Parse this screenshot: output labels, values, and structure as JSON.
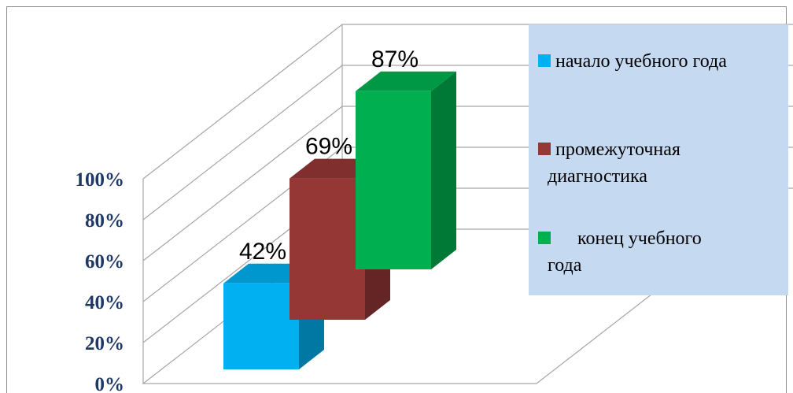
{
  "chart_data": {
    "type": "bar",
    "title": "",
    "xlabel": "",
    "ylabel": "",
    "ylim": [
      0,
      100
    ],
    "y_ticks": [
      "0%",
      "20%",
      "40%",
      "60%",
      "80%",
      "100%"
    ],
    "grid": true,
    "legend_position": "right",
    "series": [
      {
        "name": "начало учебного года",
        "value": 42,
        "label": "42%",
        "color": "#00b0f0"
      },
      {
        "name": "промежуточная диагностика",
        "value": 69,
        "label": "69%",
        "color": "#953735"
      },
      {
        "name": "конец учебного года",
        "value": 87,
        "label": "87%",
        "color": "#00b050"
      }
    ]
  }
}
